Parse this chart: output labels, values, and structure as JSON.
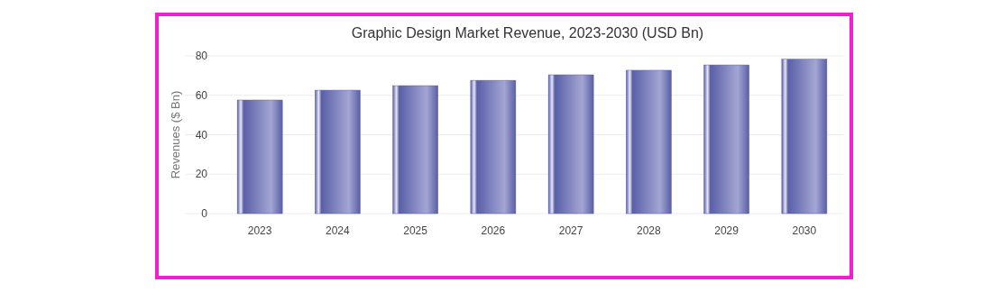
{
  "chart_data": {
    "type": "bar",
    "title": "Graphic Design Market Revenue, 2023-2030 (USD Bn)",
    "ylabel": "Revenues ($ Bn)",
    "categories": [
      "2023",
      "2024",
      "2025",
      "2026",
      "2027",
      "2028",
      "2029",
      "2030"
    ],
    "values": [
      57.6,
      62.6,
      64.9,
      67.6,
      70.4,
      72.7,
      75.4,
      78.3
    ],
    "color": "#5a5fa8",
    "ylim": [
      0,
      80
    ],
    "yticks": [
      0,
      20,
      40,
      60,
      80
    ],
    "grid": "y"
  }
}
